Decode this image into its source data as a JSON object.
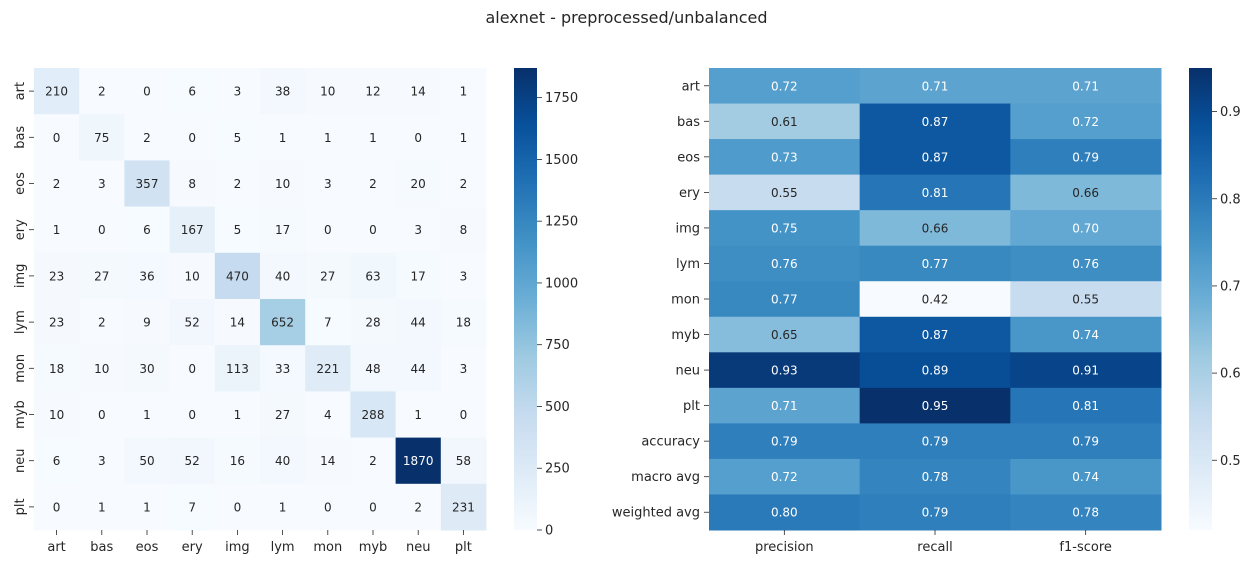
{
  "figure_title": "alexnet - preprocessed/unbalanced",
  "chart_data": [
    {
      "type": "heatmap",
      "name": "confusion-matrix",
      "row_labels": [
        "art",
        "bas",
        "eos",
        "ery",
        "img",
        "lym",
        "mon",
        "myb",
        "neu",
        "plt"
      ],
      "col_labels": [
        "art",
        "bas",
        "eos",
        "ery",
        "img",
        "lym",
        "mon",
        "myb",
        "neu",
        "plt"
      ],
      "values": [
        [
          210,
          2,
          0,
          6,
          3,
          38,
          10,
          12,
          14,
          1
        ],
        [
          0,
          75,
          2,
          0,
          5,
          1,
          1,
          1,
          0,
          1
        ],
        [
          2,
          3,
          357,
          8,
          2,
          10,
          3,
          2,
          20,
          2
        ],
        [
          1,
          0,
          6,
          167,
          5,
          17,
          0,
          0,
          3,
          8
        ],
        [
          23,
          27,
          36,
          10,
          470,
          40,
          27,
          63,
          17,
          3
        ],
        [
          23,
          2,
          9,
          52,
          14,
          652,
          7,
          28,
          44,
          18
        ],
        [
          18,
          10,
          30,
          0,
          113,
          33,
          221,
          48,
          44,
          3
        ],
        [
          10,
          0,
          1,
          0,
          1,
          27,
          4,
          288,
          1,
          0
        ],
        [
          6,
          3,
          50,
          52,
          16,
          40,
          14,
          2,
          1870,
          58
        ],
        [
          0,
          1,
          1,
          7,
          0,
          1,
          0,
          0,
          2,
          231
        ]
      ],
      "vmin": 0,
      "vmax": 1870,
      "colorbar_ticks": [
        0,
        250,
        500,
        750,
        1000,
        1250,
        1500,
        1750
      ],
      "colormap": "Blues"
    },
    {
      "type": "heatmap",
      "name": "classification-report",
      "row_labels": [
        "art",
        "bas",
        "eos",
        "ery",
        "img",
        "lym",
        "mon",
        "myb",
        "neu",
        "plt",
        "accuracy",
        "macro avg",
        "weighted avg"
      ],
      "col_labels": [
        "precision",
        "recall",
        "f1-score"
      ],
      "values": [
        [
          0.72,
          0.71,
          0.71
        ],
        [
          0.61,
          0.87,
          0.72
        ],
        [
          0.73,
          0.87,
          0.79
        ],
        [
          0.55,
          0.81,
          0.66
        ],
        [
          0.75,
          0.66,
          0.7
        ],
        [
          0.76,
          0.77,
          0.76
        ],
        [
          0.77,
          0.42,
          0.55
        ],
        [
          0.65,
          0.87,
          0.74
        ],
        [
          0.93,
          0.89,
          0.91
        ],
        [
          0.71,
          0.95,
          0.81
        ],
        [
          0.79,
          0.79,
          0.79
        ],
        [
          0.72,
          0.78,
          0.74
        ],
        [
          0.8,
          0.79,
          0.78
        ]
      ],
      "vmin": 0.42,
      "vmax": 0.95,
      "colorbar_ticks": [
        "0.5",
        "0.6",
        "0.7",
        "0.8",
        "0.9"
      ],
      "colormap": "Blues"
    }
  ]
}
